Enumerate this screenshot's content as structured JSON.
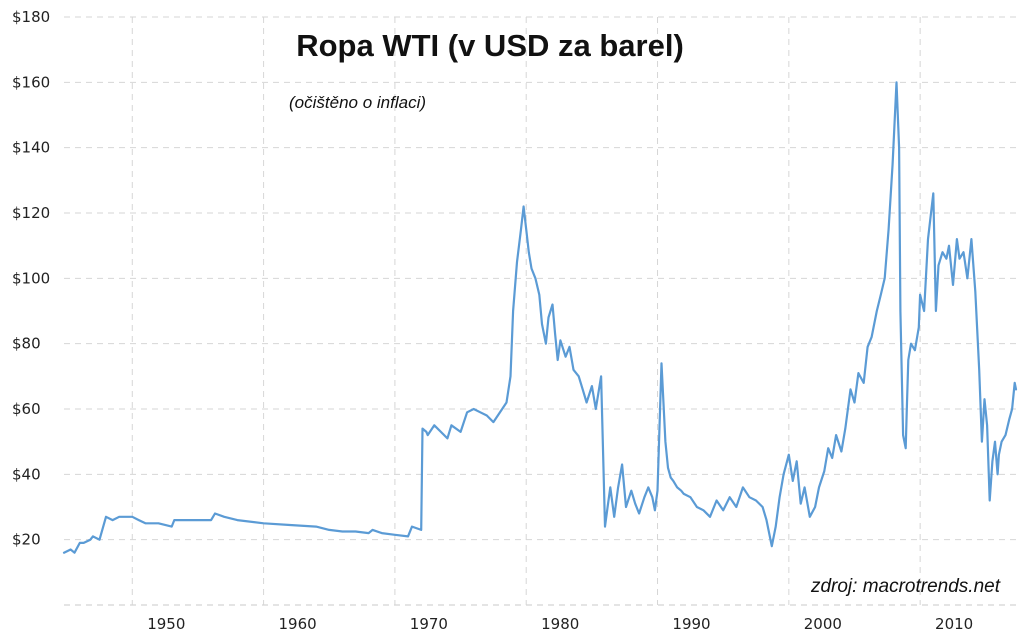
{
  "chart_data": {
    "type": "line",
    "title": "Ropa WTI (v USD za barel)",
    "subtitle": "(očištěno o inflaci)",
    "source": "zdroj: macrotrends.net",
    "xlabel": "",
    "ylabel": "",
    "xlim": [
      1944.8,
      2017.3
    ],
    "ylim": [
      0,
      180
    ],
    "grid": true,
    "y_ticks": [
      20,
      40,
      60,
      80,
      100,
      120,
      140,
      160,
      180
    ],
    "y_tick_labels": [
      "$20",
      "$40",
      "$60",
      "$80",
      "$100",
      "$120",
      "$140",
      "$160",
      "$180"
    ],
    "x_ticks": [
      1950,
      1960,
      1970,
      1980,
      1990,
      2000,
      2010
    ],
    "x_tick_labels": [
      "1950",
      "1960",
      "1970",
      "1980",
      "1990",
      "2000",
      "2010"
    ],
    "line_color": "#5b9bd5",
    "series": [
      {
        "x": [
          1944.8,
          1945.3,
          1945.6,
          1946.0,
          1946.3,
          1946.8,
          1947.0,
          1947.5,
          1948.0,
          1948.5,
          1949.0,
          1949.5,
          1950.0,
          1950.5,
          1951.0,
          1952.0,
          1953.0,
          1953.2,
          1955.0,
          1956.0,
          1956.3,
          1957.0,
          1958.0,
          1960.0,
          1962.0,
          1964.0,
          1965.0,
          1966.0,
          1967.0,
          1968.0,
          1968.3,
          1969.0,
          1970.0,
          1971.0,
          1971.3,
          1972.0,
          1972.1,
          1972.4,
          1972.5,
          1973.0,
          1973.5,
          1974.0,
          1974.3,
          1975.0,
          1975.5,
          1976.0,
          1976.5,
          1977.0,
          1977.5,
          1978.0,
          1978.5,
          1978.8,
          1979.0,
          1979.3,
          1979.6,
          1979.8,
          1980.0,
          1980.2,
          1980.4,
          1980.7,
          1981.0,
          1981.2,
          1981.5,
          1981.7,
          1982.0,
          1982.2,
          1982.4,
          1982.6,
          1983.0,
          1983.3,
          1983.6,
          1984.0,
          1984.3,
          1984.6,
          1985.0,
          1985.3,
          1985.7,
          1986.0,
          1986.2,
          1986.4,
          1986.7,
          1987.0,
          1987.3,
          1987.6,
          1988.0,
          1988.3,
          1988.6,
          1989.0,
          1989.3,
          1989.6,
          1989.8,
          1990.0,
          1990.3,
          1990.5,
          1990.6,
          1990.8,
          1991.0,
          1991.2,
          1991.5,
          1991.8,
          1992.0,
          1992.5,
          1993.0,
          1993.5,
          1994.0,
          1994.5,
          1995.0,
          1995.5,
          1996.0,
          1996.5,
          1997.0,
          1997.5,
          1998.0,
          1998.3,
          1998.7,
          1999.0,
          1999.3,
          1999.6,
          2000.0,
          2000.3,
          2000.6,
          2000.9,
          2001.2,
          2001.6,
          2002.0,
          2002.3,
          2002.7,
          2003.0,
          2003.3,
          2003.6,
          2004.0,
          2004.3,
          2004.7,
          2005.0,
          2005.3,
          2005.7,
          2006.0,
          2006.3,
          2006.7,
          2007.0,
          2007.3,
          2007.6,
          2007.9,
          2008.2,
          2008.4,
          2008.5,
          2008.7,
          2008.9,
          2009.0,
          2009.1,
          2009.3,
          2009.6,
          2009.9,
          2010.0,
          2010.3,
          2010.6,
          2011.0,
          2011.2,
          2011.4,
          2011.7,
          2012.0,
          2012.2,
          2012.5,
          2012.8,
          2013.0,
          2013.3,
          2013.6,
          2013.9,
          2014.2,
          2014.5,
          2014.7,
          2014.9,
          2015.1,
          2015.3,
          2015.5,
          2015.7,
          2015.9,
          2016.0,
          2016.2,
          2016.5,
          2016.8,
          2017.0,
          2017.2,
          2017.3
        ],
        "y": [
          16,
          17,
          16,
          19,
          19,
          20,
          21,
          20,
          27,
          26,
          27,
          27,
          27,
          26,
          25,
          25,
          24,
          26,
          26,
          26,
          28,
          27,
          26,
          25,
          24.5,
          24,
          23,
          22.5,
          22.5,
          22,
          23,
          22,
          21.5,
          21,
          24,
          23,
          54,
          53,
          52,
          55,
          53,
          51,
          55,
          53,
          59,
          60,
          59,
          58,
          56,
          59,
          62,
          70,
          90,
          105,
          115,
          122,
          115,
          108,
          103,
          100,
          95,
          86,
          80,
          88,
          92,
          83,
          75,
          81,
          76,
          79,
          72,
          70,
          66,
          62,
          67,
          60,
          70,
          24,
          30,
          36,
          27,
          36,
          43,
          30,
          35,
          31,
          28,
          33,
          36,
          33,
          29,
          35,
          74,
          58,
          50,
          42,
          39,
          38,
          36,
          35,
          34,
          33,
          30,
          29,
          27,
          32,
          29,
          33,
          30,
          36,
          33,
          32,
          30,
          26,
          18,
          24,
          33,
          40,
          46,
          38,
          44,
          31,
          36,
          27,
          30,
          36,
          41,
          48,
          45,
          52,
          47,
          54,
          66,
          62,
          71,
          68,
          79,
          82,
          90,
          95,
          100,
          115,
          135,
          160,
          140,
          90,
          52,
          48,
          62,
          75,
          80,
          78,
          85,
          95,
          90,
          112,
          126,
          90,
          104,
          108,
          106,
          110,
          98,
          112,
          106,
          108,
          100,
          112,
          96,
          72,
          50,
          63,
          55,
          32,
          44,
          50,
          40,
          46,
          50,
          52,
          57,
          60,
          68,
          66
        ]
      }
    ]
  }
}
